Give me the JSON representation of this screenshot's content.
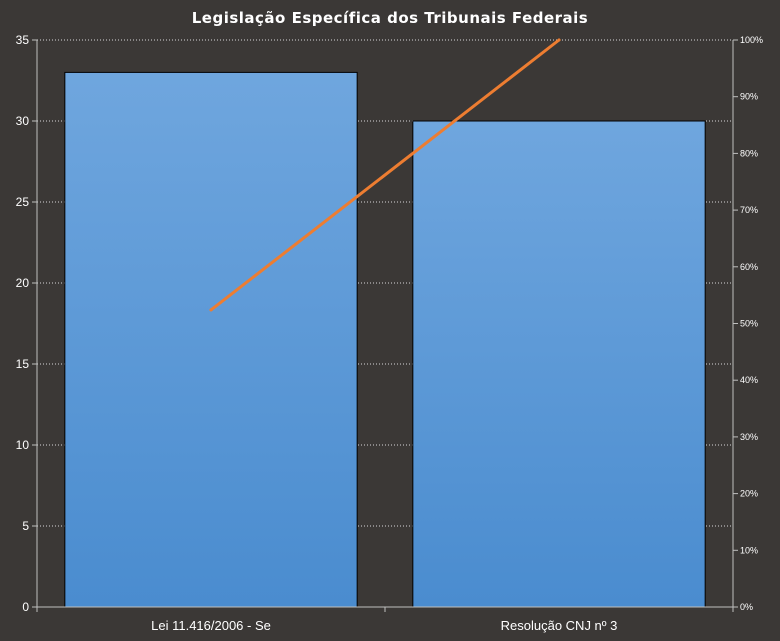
{
  "chart_data": {
    "type": "bar",
    "title": "Legislação Específica dos Tribunais Federais",
    "categories": [
      "Lei 11.416/2006 - Se",
      "Resolução CNJ nº 3"
    ],
    "series": [
      {
        "type": "bar",
        "values": [
          33,
          30
        ],
        "color": "#5b9bd5",
        "axis": "left"
      },
      {
        "type": "line",
        "values": [
          52.4,
          100
        ],
        "color": "#ed7d31",
        "axis": "right"
      }
    ],
    "y_left": {
      "min": 0,
      "max": 35,
      "step": 5,
      "ticks": [
        "0",
        "5",
        "10",
        "15",
        "20",
        "25",
        "30",
        "35"
      ]
    },
    "y_right": {
      "min": 0,
      "max": 100,
      "step": 10,
      "ticks": [
        "0%",
        "10%",
        "20%",
        "30%",
        "40%",
        "50%",
        "60%",
        "70%",
        "80%",
        "90%",
        "100%"
      ]
    },
    "grid": "dotted-horizontal",
    "legend": "none",
    "background": "#3b3836"
  }
}
